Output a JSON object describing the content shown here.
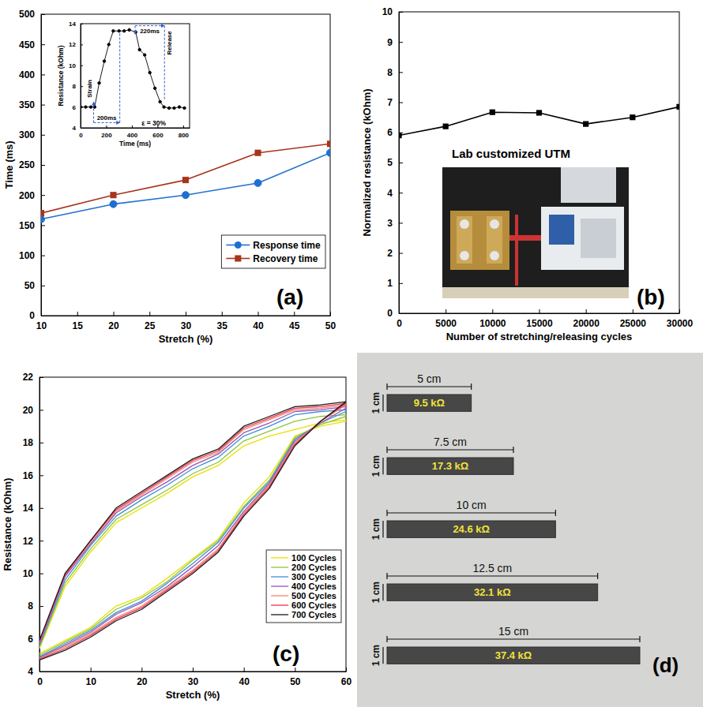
{
  "chart_data": [
    {
      "type": "line",
      "xlabel": "Stretch (%)",
      "ylabel": "Time (ms)",
      "x": [
        10,
        20,
        30,
        40,
        50
      ],
      "xlim": [
        10,
        50
      ],
      "xticks": [
        10,
        15,
        20,
        25,
        30,
        35,
        40,
        45,
        50
      ],
      "ylim": [
        0,
        500
      ],
      "yticks": [
        0,
        50,
        100,
        150,
        200,
        250,
        300,
        350,
        400,
        450,
        500
      ],
      "series": [
        {
          "name": "Response time",
          "color": "#1f6fd1",
          "marker": "circle",
          "values": [
            160,
            185,
            200,
            220,
            270
          ]
        },
        {
          "name": "Recovery time",
          "color": "#a8341c",
          "marker": "square",
          "values": [
            170,
            200,
            225,
            270,
            285
          ]
        }
      ],
      "legend": "lower right",
      "grid": false,
      "annotations": [
        "(a)"
      ]
    },
    {
      "type": "line",
      "xlabel": "Time (ms)",
      "ylabel": "Resistance (kOhm)",
      "x": [
        0,
        40,
        80,
        110,
        145,
        185,
        220,
        255,
        300,
        340,
        380,
        430,
        460,
        500,
        540,
        580,
        620,
        650,
        690,
        730,
        770,
        810
      ],
      "xlim": [
        0,
        850
      ],
      "xticks": [
        0,
        200,
        400,
        600,
        800
      ],
      "ylim": [
        4,
        14
      ],
      "yticks": [
        4,
        6,
        8,
        10,
        12,
        14
      ],
      "series": [
        {
          "color": "#000000",
          "marker": "circle",
          "values": [
            6,
            6,
            6,
            6,
            8.3,
            10.4,
            12,
            13.3,
            13.3,
            13.3,
            13.4,
            13.2,
            11.5,
            11,
            9.3,
            7.8,
            6.5,
            6,
            5.9,
            5.9,
            6,
            5.9
          ]
        }
      ],
      "grid": false,
      "annotations": [
        "Strain",
        "200ms",
        "Release",
        "220ms",
        "ε = 30%"
      ]
    },
    {
      "type": "line",
      "xlabel": "Number of stretching/releasing cycles",
      "ylabel": "Normalized resistance (kOhm)",
      "x": [
        0,
        5000,
        10000,
        15000,
        20000,
        25000,
        30000
      ],
      "xlim": [
        0,
        30000
      ],
      "xticks": [
        0,
        5000,
        10000,
        15000,
        20000,
        25000,
        30000
      ],
      "ylim": [
        0,
        10
      ],
      "yticks": [
        0,
        1,
        2,
        3,
        4,
        5,
        6,
        7,
        8,
        9,
        10
      ],
      "series": [
        {
          "color": "#000000",
          "marker": "square",
          "values": [
            5.9,
            6.2,
            6.67,
            6.65,
            6.28,
            6.5,
            6.85
          ]
        }
      ],
      "grid": false,
      "annotations": [
        "(b)",
        "Lab customized UTM"
      ]
    },
    {
      "type": "line",
      "xlabel": "Stretch (%)",
      "ylabel": "Resistance (kOhm)",
      "x": [
        0,
        5,
        10,
        15,
        20,
        25,
        30,
        35,
        40,
        45,
        50,
        55,
        60,
        60,
        55,
        50,
        45,
        40,
        35,
        30,
        25,
        20,
        15,
        10,
        5,
        0
      ],
      "xlim": [
        0,
        60
      ],
      "xticks": [
        0,
        10,
        20,
        30,
        40,
        50,
        60
      ],
      "ylim": [
        4,
        22
      ],
      "yticks": [
        4,
        6,
        8,
        10,
        12,
        14,
        16,
        18,
        20,
        22
      ],
      "series": [
        {
          "name": "100 Cycles",
          "color": "#e8e000",
          "values": [
            5.1,
            5.9,
            6.7,
            8.0,
            8.6,
            9.7,
            10.9,
            12.1,
            14.3,
            15.9,
            18.4,
            19.0,
            19.3,
            19.4,
            19.2,
            18.8,
            18.4,
            17.8,
            16.6,
            15.9,
            14.9,
            14.0,
            13.1,
            11.3,
            9.2,
            5.4
          ]
        },
        {
          "name": "200 Cycles",
          "color": "#8cc63f",
          "values": [
            5.0,
            5.8,
            6.6,
            7.8,
            8.5,
            9.5,
            10.8,
            12.0,
            14.1,
            15.7,
            18.3,
            19.1,
            19.6,
            19.7,
            19.6,
            19.3,
            18.7,
            18.1,
            16.8,
            16.1,
            15.1,
            14.2,
            13.3,
            11.5,
            9.4,
            5.5
          ]
        },
        {
          "name": "300 Cycles",
          "color": "#3d8fd6",
          "values": [
            4.9,
            5.7,
            6.5,
            7.6,
            8.3,
            9.4,
            10.6,
            11.9,
            14.0,
            15.6,
            18.2,
            19.2,
            19.9,
            20.0,
            19.9,
            19.7,
            19.0,
            18.4,
            17.1,
            16.4,
            15.4,
            14.5,
            13.5,
            11.7,
            9.6,
            5.6
          ]
        },
        {
          "name": "400 Cycles",
          "color": "#9a4fc4",
          "values": [
            4.85,
            5.6,
            6.4,
            7.5,
            8.2,
            9.2,
            10.4,
            11.7,
            13.8,
            15.5,
            18.1,
            19.2,
            20.1,
            20.2,
            20.0,
            19.9,
            19.2,
            18.6,
            17.3,
            16.6,
            15.6,
            14.7,
            13.7,
            11.8,
            9.8,
            5.7
          ]
        },
        {
          "name": "500 Cycles",
          "color": "#f08a6a",
          "values": [
            4.8,
            5.5,
            6.3,
            7.3,
            8.0,
            9.1,
            10.2,
            11.5,
            13.7,
            15.4,
            18.0,
            19.3,
            20.3,
            20.3,
            20.1,
            20.0,
            19.4,
            18.8,
            17.4,
            16.8,
            15.8,
            14.8,
            13.8,
            11.9,
            9.9,
            5.8
          ]
        },
        {
          "name": "600 Cycles",
          "color": "#e8344e",
          "values": [
            4.75,
            5.4,
            6.2,
            7.2,
            7.9,
            9.0,
            10.1,
            11.4,
            13.6,
            15.3,
            17.9,
            19.3,
            20.4,
            20.4,
            20.2,
            20.1,
            19.5,
            18.9,
            17.5,
            16.9,
            15.9,
            14.9,
            13.9,
            12.0,
            9.9,
            5.85
          ]
        },
        {
          "name": "700 Cycles",
          "color": "#1a1a1a",
          "values": [
            4.7,
            5.3,
            6.1,
            7.1,
            7.8,
            8.9,
            10.0,
            11.3,
            13.5,
            15.2,
            17.8,
            19.3,
            20.5,
            20.5,
            20.3,
            20.2,
            19.6,
            19.0,
            17.6,
            17.0,
            16.0,
            15.0,
            14.0,
            12.0,
            10.0,
            5.9
          ]
        }
      ],
      "legend": "lower right",
      "grid": false,
      "annotations": [
        "(c)"
      ]
    },
    {
      "type": "bar",
      "orientation": "horizontal",
      "tick_labels": false,
      "values": [
        5,
        7.5,
        10,
        12.5,
        15
      ],
      "value_labels": [
        "5 cm",
        "7.5 cm",
        "10 cm",
        "12.5 cm",
        "15 cm"
      ],
      "widths": [
        1,
        1,
        1,
        1,
        1
      ],
      "width_labels": [
        "1 cm",
        "1 cm",
        "1 cm",
        "1 cm",
        "1 cm"
      ],
      "resistance_labels": [
        "9.5 kΩ",
        "17.3 kΩ",
        "24.6 kΩ",
        "32.1 kΩ",
        "37.4 kΩ"
      ],
      "color": "#474747",
      "annotations": [
        "(d)"
      ]
    }
  ]
}
